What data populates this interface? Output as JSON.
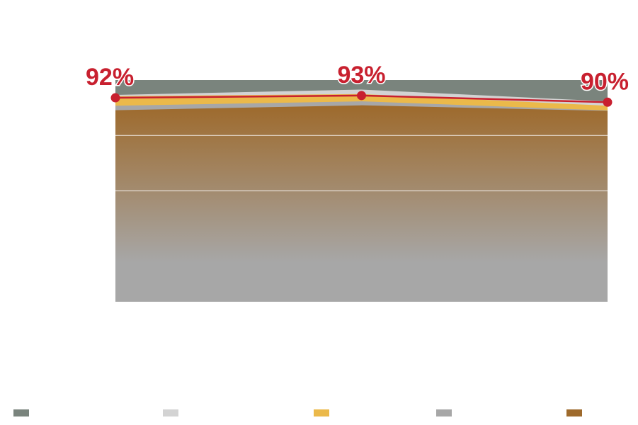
{
  "chart_data": {
    "type": "area",
    "title": "",
    "xlabel": "",
    "ylabel": "",
    "x": [
      "",
      "",
      ""
    ],
    "ylim": [
      0,
      100
    ],
    "grid": true,
    "legend": "bottom",
    "series": [
      {
        "color": "#7a847d",
        "values": [
          100,
          100,
          100
        ]
      },
      {
        "color": "#d3d3d3",
        "values": [
          93.3,
          95.7,
          90.4
        ]
      },
      {
        "color": "#ebb94a",
        "values": [
          92.7,
          93.7,
          88.4
        ]
      },
      {
        "color": "#a7a7a7",
        "values": [
          88.4,
          90.4,
          86.3
        ]
      },
      {
        "color": "#9e6a2c",
        "values": [
          86.4,
          88.6,
          86.1
        ]
      }
    ],
    "line": {
      "color": "#c8202f",
      "values": [
        92,
        93,
        90
      ],
      "labels": [
        "92%",
        "93%",
        "90%"
      ]
    }
  },
  "legend": {
    "items": [
      {
        "color": "#7a847d",
        "label": ""
      },
      {
        "color": "#d3d3d3",
        "label": ""
      },
      {
        "color": "#ebb94a",
        "label": ""
      },
      {
        "color": "#a7a7a7",
        "label": ""
      },
      {
        "color": "#9e6a2c",
        "label": ""
      }
    ]
  }
}
